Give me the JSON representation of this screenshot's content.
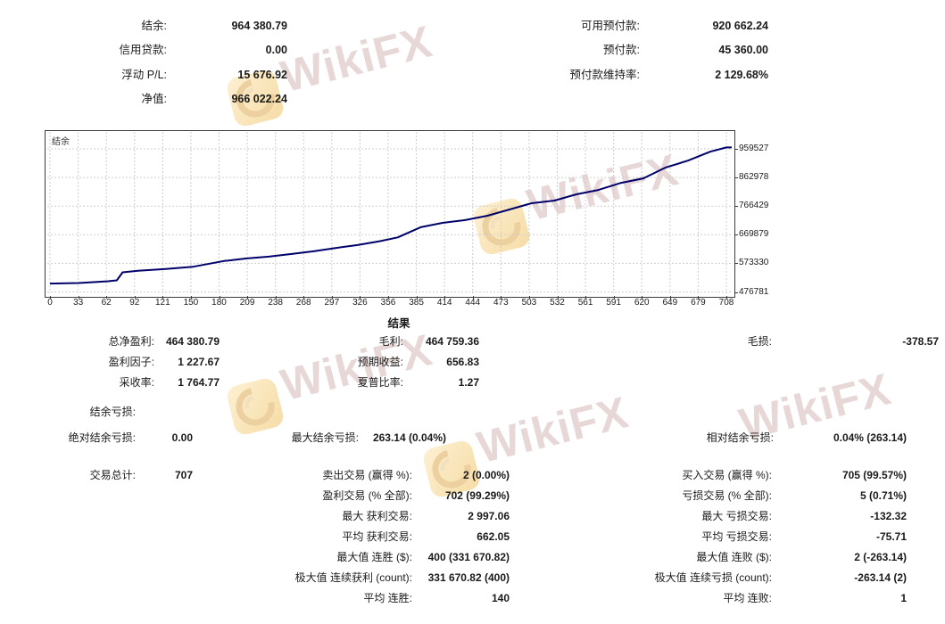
{
  "watermark": {
    "text": "WikiFX"
  },
  "top_summary": {
    "left": [
      {
        "label": "结余:",
        "value": "964 380.79"
      },
      {
        "label": "信用贷款:",
        "value": "0.00"
      },
      {
        "label": "浮动 P/L:",
        "value": "15 676.92"
      },
      {
        "label": "净值:",
        "value": "966 022.24"
      }
    ],
    "right": [
      {
        "label": "可用预付款:",
        "value": "920 662.24"
      },
      {
        "label": "预付款:",
        "value": "45 360.00"
      },
      {
        "label": "预付款维持率:",
        "value": "2 129.68%"
      }
    ]
  },
  "chart_data": {
    "type": "line",
    "title": "结余",
    "legend_position": "top-left-inside",
    "grid": true,
    "line_color": "#00006b",
    "grid_color": "#cdcdcd",
    "x_range": [
      0,
      708
    ],
    "y_ticks": [
      959527,
      862978,
      766429,
      669879,
      573330,
      476781
    ],
    "x_tick_labels": [
      "0",
      "33",
      "62",
      "92",
      "121",
      "150",
      "180",
      "209",
      "238",
      "268",
      "297",
      "326",
      "356",
      "385",
      "414",
      "444",
      "473",
      "503",
      "532",
      "561",
      "591",
      "620",
      "649",
      "679",
      "708"
    ],
    "series": [
      {
        "name": "结余",
        "x": [
          0,
          30,
          61,
          70,
          76,
          92,
          121,
          150,
          182,
          206,
          229,
          253,
          276,
          299,
          322,
          345,
          364,
          388,
          411,
          434,
          458,
          481,
          504,
          528,
          551,
          574,
          598,
          621,
          644,
          668,
          691,
          708
        ],
        "y": [
          505000,
          507000,
          513000,
          516000,
          543000,
          548000,
          554000,
          562000,
          581000,
          590000,
          596000,
          605000,
          614000,
          625000,
          635000,
          648000,
          661000,
          695000,
          710000,
          719000,
          734000,
          755000,
          776000,
          785000,
          806000,
          821000,
          845000,
          860000,
          896000,
          920000,
          950000,
          964381
        ]
      }
    ]
  },
  "results": {
    "header": "结果",
    "groupA": [
      {
        "c1": {
          "label": "总净盈利:",
          "value": "464 380.79"
        },
        "c2": {
          "label": "毛利:",
          "value": "464 759.36"
        },
        "c3": {
          "label": "毛损:",
          "value": "-378.57"
        }
      },
      {
        "c1": {
          "label": "盈利因子:",
          "value": "1 227.67"
        },
        "c2": {
          "label": "预期收益:",
          "value": "656.83"
        }
      },
      {
        "c1": {
          "label": "采收率:",
          "value": "1 764.77"
        },
        "c2": {
          "label": "夏普比率:",
          "value": "1.27"
        }
      }
    ],
    "groupB": [
      {
        "c1": {
          "label": "结余亏损:",
          "value": ""
        }
      },
      {
        "c1": {
          "label": "绝对结余亏损:",
          "value": "0.00"
        },
        "c2": {
          "label": "最大结余亏损:",
          "value": "263.14 (0.04%)"
        },
        "c3": {
          "label": "相对结余亏损:",
          "value": "0.04% (263.14)"
        }
      }
    ],
    "groupC": [
      {
        "c1": {
          "label": "交易总计:",
          "value": "707"
        },
        "c2": {
          "label": "卖出交易 (赢得 %):",
          "value": "2 (0.00%)"
        },
        "c3": {
          "label": "买入交易 (赢得 %):",
          "value": "705 (99.57%)"
        }
      },
      {
        "c2": {
          "label": "盈利交易 (% 全部):",
          "value": "702 (99.29%)"
        },
        "c3": {
          "label": "亏损交易 (% 全部):",
          "value": "5 (0.71%)"
        }
      },
      {
        "c2": {
          "label": "最大 获利交易:",
          "value": "2 997.06"
        },
        "c3": {
          "label": "最大 亏损交易:",
          "value": "-132.32"
        }
      },
      {
        "c2": {
          "label": "平均 获利交易:",
          "value": "662.05"
        },
        "c3": {
          "label": "平均 亏损交易:",
          "value": "-75.71"
        }
      },
      {
        "c2": {
          "label": "最大值 连胜 ($):",
          "value": "400 (331 670.82)"
        },
        "c3": {
          "label": "最大值 连败 ($):",
          "value": "2 (-263.14)"
        }
      },
      {
        "c2": {
          "label": "极大值 连续获利 (count):",
          "value": "331 670.82 (400)"
        },
        "c3": {
          "label": "极大值 连续亏损 (count):",
          "value": "-263.14 (2)"
        }
      },
      {
        "c2": {
          "label": "平均 连胜:",
          "value": "140"
        },
        "c3": {
          "label": "平均 连败:",
          "value": "1"
        }
      }
    ]
  }
}
